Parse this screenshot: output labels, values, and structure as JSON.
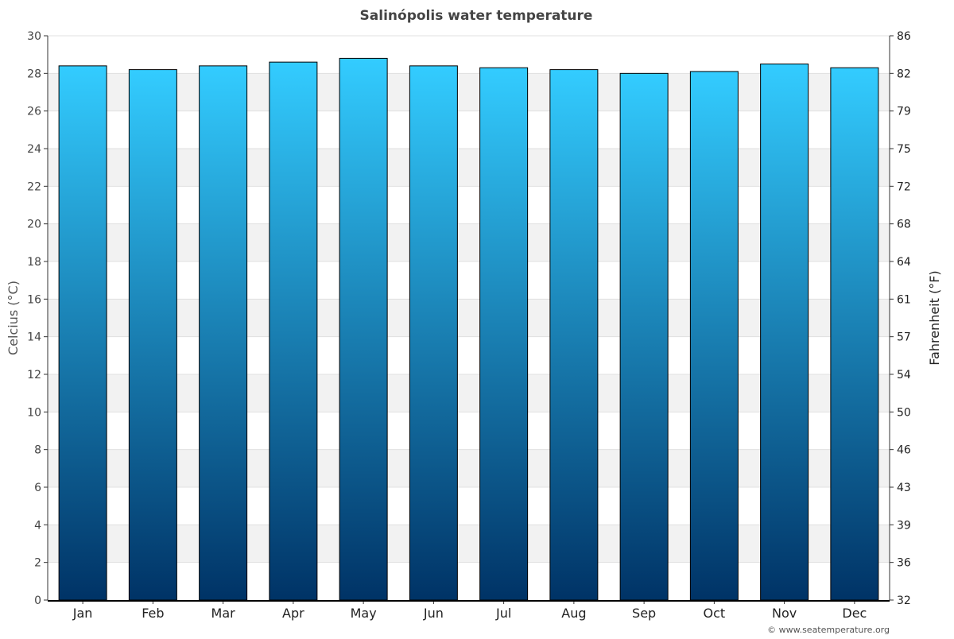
{
  "chart_data": {
    "type": "bar",
    "title": "Salinópolis water temperature",
    "categories": [
      "Jan",
      "Feb",
      "Mar",
      "Apr",
      "May",
      "Jun",
      "Jul",
      "Aug",
      "Sep",
      "Oct",
      "Nov",
      "Dec"
    ],
    "values": [
      28.4,
      28.2,
      28.4,
      28.6,
      28.8,
      28.4,
      28.3,
      28.2,
      28.0,
      28.1,
      28.5,
      28.3
    ],
    "ylabel": "Celcius (°C)",
    "y2label": "Fahrenheit (°F)",
    "ylim": [
      0,
      30
    ],
    "yticks": [
      0,
      2,
      4,
      6,
      8,
      10,
      12,
      14,
      16,
      18,
      20,
      22,
      24,
      26,
      28,
      30
    ],
    "y2ticks": [
      "32",
      "36",
      "39",
      "43",
      "46",
      "50",
      "54",
      "57",
      "61",
      "64",
      "68",
      "72",
      "75",
      "79",
      "82",
      "86"
    ],
    "grid": true,
    "bar_gradient": [
      "#33ccff",
      "#003366"
    ]
  },
  "credit": "© www.seatemperature.org"
}
